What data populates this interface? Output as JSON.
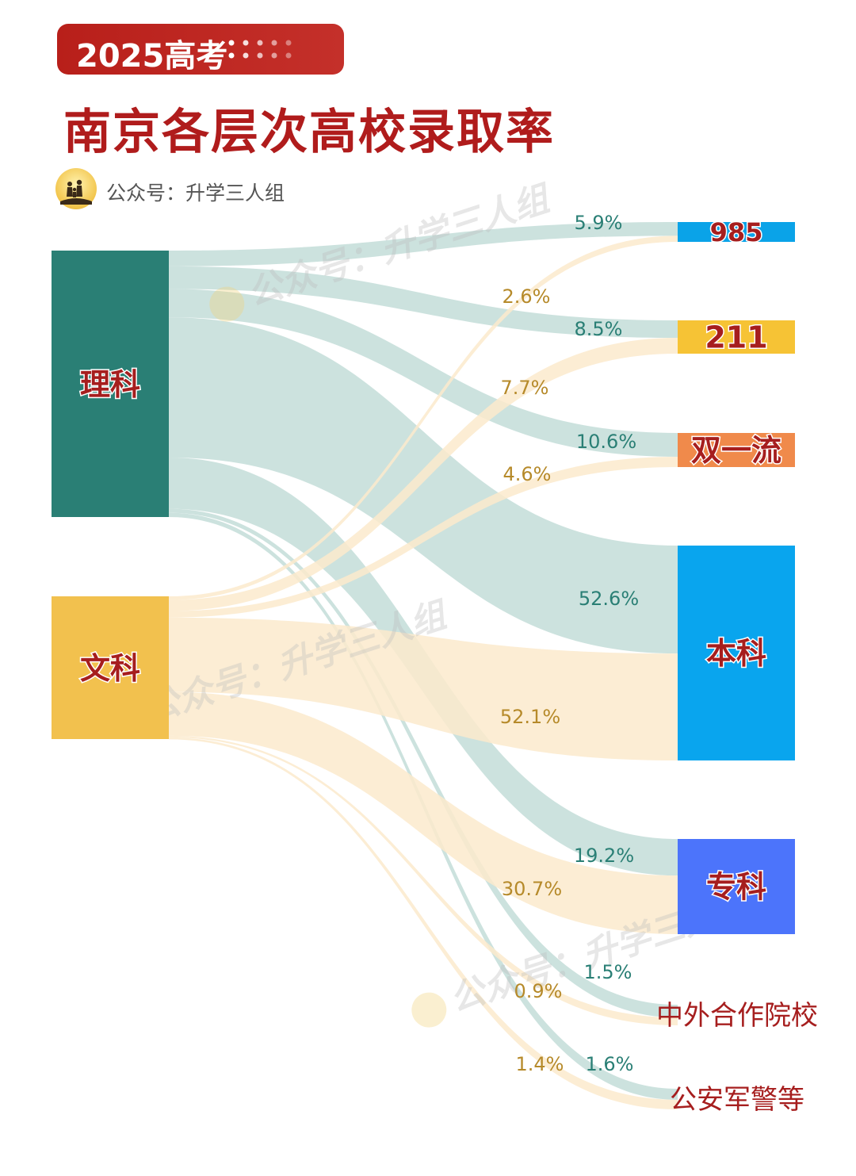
{
  "header": {
    "tag": "2025高考",
    "title": "南京各层次高校录取率",
    "account": "公众号：升学三人组"
  },
  "watermark": "公众号：升学三人组",
  "colors": {
    "lk_node": "#2a7f75",
    "wk_node": "#f2c14e",
    "lk_flow": "#c9e0dc",
    "wk_flow": "#fbeacc",
    "lk_label": "#2a7f75",
    "wk_label": "#b68a2a",
    "target_text": "#a61e1e"
  },
  "chart_data": {
    "type": "sankey",
    "sources": [
      {
        "id": "lk",
        "name": "理科"
      },
      {
        "id": "wk",
        "name": "文科"
      }
    ],
    "targets": [
      {
        "id": "985",
        "name": "985",
        "color": "#0aa3e8"
      },
      {
        "id": "211",
        "name": "211",
        "color": "#f6c335"
      },
      {
        "id": "syl",
        "name": "双一流",
        "color": "#f08a4b"
      },
      {
        "id": "bk",
        "name": "本科",
        "color": "#09a5ee"
      },
      {
        "id": "zk",
        "name": "专科",
        "color": "#4c74fb"
      },
      {
        "id": "zw",
        "name": "中外合作院校",
        "color": ""
      },
      {
        "id": "ga",
        "name": "公安军警等",
        "color": ""
      }
    ],
    "links": [
      {
        "source": "lk",
        "target": "985",
        "value": 5.9,
        "label": "5.9%"
      },
      {
        "source": "lk",
        "target": "211",
        "value": 8.5,
        "label": "8.5%"
      },
      {
        "source": "lk",
        "target": "syl",
        "value": 10.6,
        "label": "10.6%"
      },
      {
        "source": "lk",
        "target": "bk",
        "value": 52.6,
        "label": "52.6%"
      },
      {
        "source": "lk",
        "target": "zk",
        "value": 19.2,
        "label": "19.2%"
      },
      {
        "source": "lk",
        "target": "zw",
        "value": 1.5,
        "label": "1.5%"
      },
      {
        "source": "lk",
        "target": "ga",
        "value": 1.6,
        "label": "1.6%"
      },
      {
        "source": "wk",
        "target": "985",
        "value": 2.6,
        "label": "2.6%"
      },
      {
        "source": "wk",
        "target": "211",
        "value": 7.7,
        "label": "7.7%"
      },
      {
        "source": "wk",
        "target": "syl",
        "value": 4.6,
        "label": "4.6%"
      },
      {
        "source": "wk",
        "target": "bk",
        "value": 52.1,
        "label": "52.1%"
      },
      {
        "source": "wk",
        "target": "zk",
        "value": 30.7,
        "label": "30.7%"
      },
      {
        "source": "wk",
        "target": "zw",
        "value": 0.9,
        "label": "0.9%"
      },
      {
        "source": "wk",
        "target": "ga",
        "value": 1.4,
        "label": "1.4%"
      }
    ]
  }
}
